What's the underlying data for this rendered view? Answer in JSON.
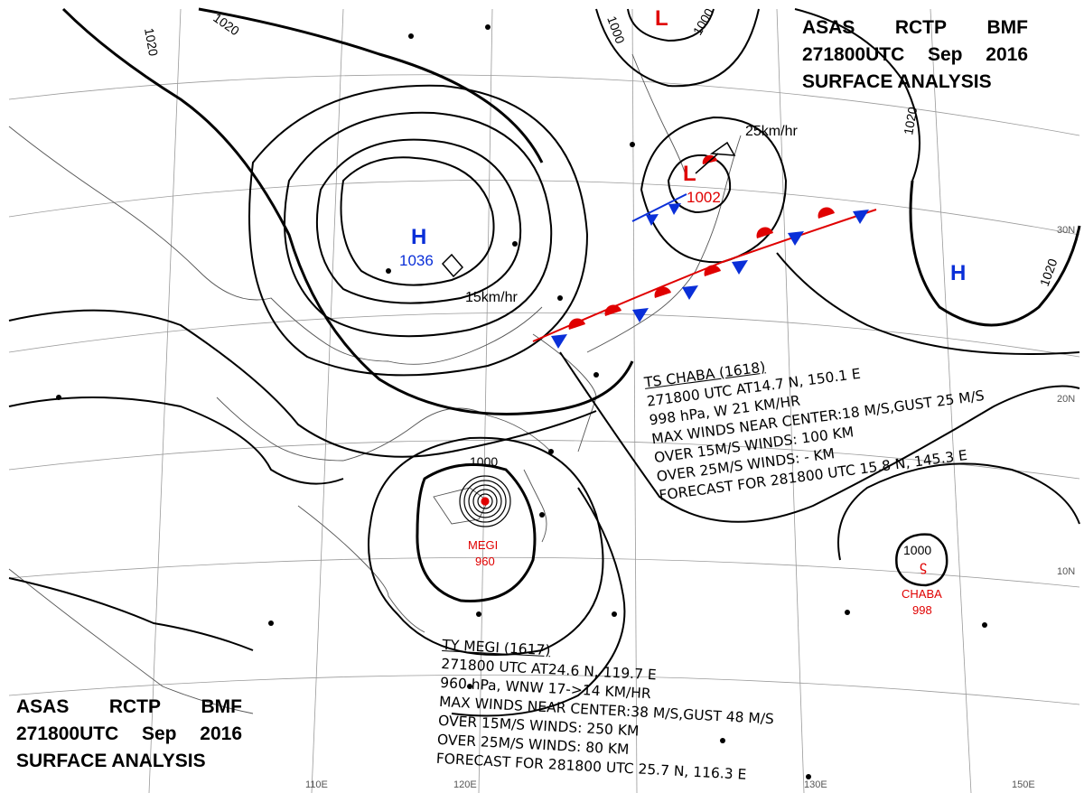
{
  "header_top": {
    "line1": [
      "ASAS",
      "RCTP",
      "BMF"
    ],
    "line2": [
      "271800UTC",
      "Sep",
      "2016"
    ],
    "line3": "SURFACE ANALYSIS"
  },
  "header_bottom": {
    "line1": [
      "ASAS",
      "RCTP",
      "BMF"
    ],
    "line2": [
      "271800UTC",
      "Sep",
      "2016"
    ],
    "line3": "SURFACE ANALYSIS"
  },
  "pressure_systems": {
    "high_west": {
      "symbol": "H",
      "value": "1036"
    },
    "low_north": {
      "symbol": "L"
    },
    "low_japan": {
      "symbol": "L",
      "value": "1002"
    },
    "high_east": {
      "symbol": "H"
    }
  },
  "motion_vectors": {
    "high_west": "15km/hr",
    "low_japan": "25km/hr"
  },
  "storms": {
    "megi": {
      "name": "MEGI",
      "pressure": "960"
    },
    "chaba": {
      "name": "CHABA",
      "pressure": "998"
    }
  },
  "isobar_labels": [
    "1020",
    "1020",
    "1000",
    "1000",
    "1020",
    "1020",
    "1000",
    "1000"
  ],
  "latitude_labels": [
    "30N",
    "20N",
    "10N"
  ],
  "longitude_labels": [
    "110E",
    "120E",
    "130E",
    "150E"
  ],
  "ts_chaba": {
    "line1": "TS  CHABA  (1618)",
    "line2": "271800  UTC  AT14.7 N, 150.1 E",
    "line3": "998 hPa, W  21 KM/HR",
    "line4": "MAX WINDS NEAR CENTER:18 M/S,GUST 25 M/S",
    "line5": "OVER 15M/S WINDS: 100 KM",
    "line6": "OVER 25M/S WINDS: - KM",
    "line7": "FORECAST FOR 281800 UTC 15.8 N, 145.3 E"
  },
  "ty_megi": {
    "line1": "TY  MEGI  (1617)",
    "line2": "271800 UTC  AT24.6 N, 119.7 E",
    "line3": "960 hPa, WNW  17->14 KM/HR",
    "line4": "MAX WINDS NEAR CENTER:38 M/S,GUST 48 M/S",
    "line5": "OVER 15M/S WINDS: 250 KM",
    "line6": "OVER 25M/S WINDS: 80 KM",
    "line7": "FORECAST FOR 281800 UTC 25.7 N, 116.3 E"
  },
  "colors": {
    "high_low_blue": "#0a2fd8",
    "low_red": "#e00000",
    "warm_front": "#e00000",
    "cold_front": "#0a2fd8",
    "isobar": "#000000",
    "grid": "#888888"
  }
}
